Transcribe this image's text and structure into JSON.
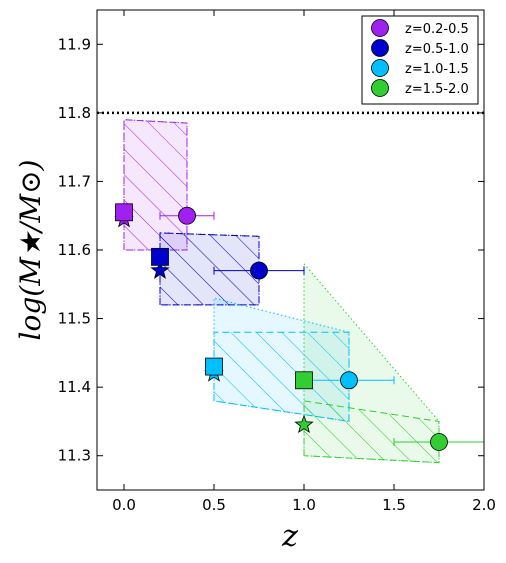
{
  "chart_data": {
    "type": "scatter",
    "title": "",
    "xlabel": "z",
    "ylabel": "log(M★/M⊙)",
    "xlim": [
      -0.15,
      2.0
    ],
    "ylim": [
      11.25,
      11.95
    ],
    "xticks": [
      0.0,
      0.5,
      1.0,
      1.5,
      2.0
    ],
    "xtick_labels": [
      "0.0",
      "0.5",
      "1.0",
      "1.5",
      "2.0"
    ],
    "yticks": [
      11.3,
      11.4,
      11.5,
      11.6,
      11.7,
      11.8,
      11.9
    ],
    "ytick_labels": [
      "11.3",
      "11.4",
      "11.5",
      "11.6",
      "11.7",
      "11.8",
      "11.9"
    ],
    "grid": false,
    "legend_position": "top-right",
    "hline": {
      "y": 11.8,
      "style": "dotted"
    },
    "series": [
      {
        "name": "z=0.2-0.5",
        "color": "#a020f0",
        "circle": {
          "x": 0.35,
          "y": 11.65,
          "xerr": [
            0.15,
            0.15
          ]
        },
        "square": {
          "x": 0.0,
          "y": 11.655
        },
        "star": {
          "x": 0.0,
          "y": 11.645
        },
        "region_hatched": [
          [
            0.0,
            11.6
          ],
          [
            0.0,
            11.79
          ],
          [
            0.35,
            11.785
          ],
          [
            0.35,
            11.6
          ]
        ],
        "region_shaded": [
          [
            0.0,
            11.6
          ],
          [
            0.0,
            11.79
          ],
          [
            0.35,
            11.785
          ],
          [
            0.35,
            11.6
          ]
        ]
      },
      {
        "name": "z=0.5-1.0",
        "color": "#0000cd",
        "circle": {
          "x": 0.75,
          "y": 11.57,
          "xerr": [
            0.25,
            0.25
          ]
        },
        "square": {
          "x": 0.2,
          "y": 11.59
        },
        "star": {
          "x": 0.2,
          "y": 11.57
        },
        "region_hatched": [
          [
            0.2,
            11.52
          ],
          [
            0.2,
            11.625
          ],
          [
            0.75,
            11.62
          ],
          [
            0.75,
            11.52
          ]
        ],
        "region_shaded": [
          [
            0.2,
            11.52
          ],
          [
            0.2,
            11.625
          ],
          [
            0.75,
            11.62
          ],
          [
            0.75,
            11.52
          ]
        ]
      },
      {
        "name": "z=1.0-1.5",
        "color": "#00bfff",
        "circle": {
          "x": 1.25,
          "y": 11.41,
          "xerr": [
            0.25,
            0.25
          ]
        },
        "square": {
          "x": 0.5,
          "y": 11.43
        },
        "star": {
          "x": 0.5,
          "y": 11.42
        },
        "region_hatched": [
          [
            0.5,
            11.38
          ],
          [
            0.5,
            11.48
          ],
          [
            1.25,
            11.48
          ],
          [
            1.25,
            11.35
          ]
        ],
        "region_shaded": [
          [
            0.5,
            11.38
          ],
          [
            0.5,
            11.53
          ],
          [
            1.25,
            11.48
          ],
          [
            1.25,
            11.35
          ]
        ]
      },
      {
        "name": "z=1.5-2.0",
        "color": "#32cd32",
        "circle": {
          "x": 1.75,
          "y": 11.32,
          "xerr": [
            0.25,
            0.25
          ]
        },
        "square": {
          "x": 1.0,
          "y": 11.41
        },
        "star": {
          "x": 1.0,
          "y": 11.345
        },
        "region_hatched": [
          [
            1.0,
            11.3
          ],
          [
            1.0,
            11.38
          ],
          [
            1.75,
            11.35
          ],
          [
            1.75,
            11.29
          ]
        ],
        "region_shaded": [
          [
            1.0,
            11.3
          ],
          [
            1.0,
            11.58
          ],
          [
            1.75,
            11.35
          ],
          [
            1.75,
            11.29
          ]
        ]
      }
    ]
  }
}
